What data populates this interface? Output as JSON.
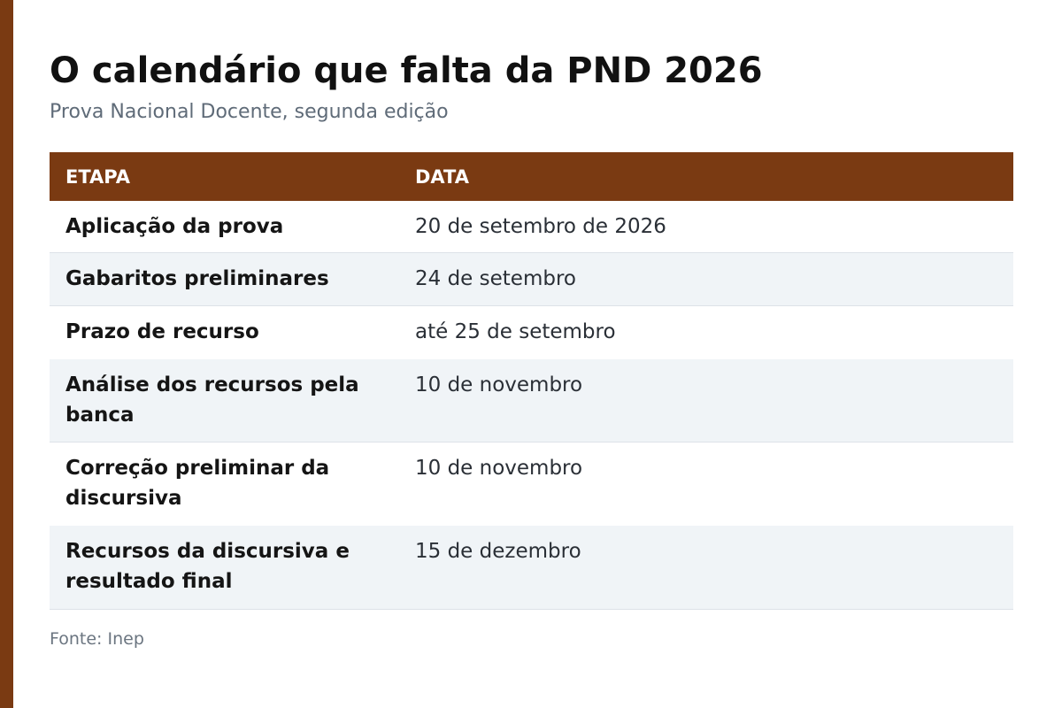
{
  "header": {
    "title": "O calendário que falta da PND 2026",
    "subtitle": "Prova Nacional Docente, segunda edição"
  },
  "table": {
    "columns": [
      "ETAPA",
      "DATA"
    ],
    "rows": [
      {
        "etapa": "Aplicação da prova",
        "data": "20 de setembro de 2026"
      },
      {
        "etapa": "Gabaritos preliminares",
        "data": "24 de setembro"
      },
      {
        "etapa": "Prazo de recurso",
        "data": "até 25 de setembro"
      },
      {
        "etapa": "Análise dos recursos pela banca",
        "data": "10 de novembro"
      },
      {
        "etapa": "Correção preliminar da discursiva",
        "data": "10 de novembro"
      },
      {
        "etapa": "Recursos da discursiva e resultado final",
        "data": "15 de dezembro"
      }
    ]
  },
  "footer": {
    "source": "Fonte: Inep"
  },
  "colors": {
    "accent": "#7a3a12",
    "row_alt": "#f0f4f7"
  }
}
